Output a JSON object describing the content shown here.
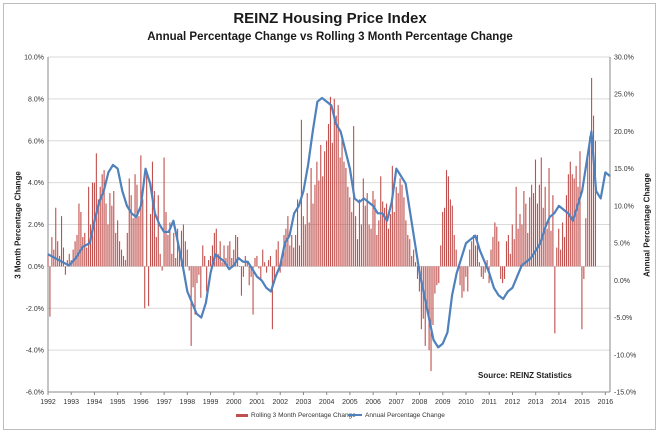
{
  "chart_data": {
    "type": "bar",
    "title": "REINZ Housing Price Index",
    "subtitle": "Annual Percentage Change vs Rolling 3 Month Percentage Change",
    "ylabel_left": "3 Month Percentage Change",
    "ylabel_right": "Annual Percentage Change",
    "source_note": "Source: REINZ Statistics",
    "ylim_left": [
      -6,
      10
    ],
    "ylim_right": [
      -15,
      30
    ],
    "y_ticks_left": [
      "10.0%",
      "8.0%",
      "6.0%",
      "4.0%",
      "2.0%",
      "0.0%",
      "-2.0%",
      "-4.0%",
      "-6.0%"
    ],
    "y_ticks_right": [
      "30.0%",
      "25.0%",
      "20.0%",
      "15.0%",
      "10.0%",
      "5.0%",
      "0.0%",
      "-5.0%",
      "-10.0%",
      "-15.0%"
    ],
    "x_ticks": [
      "1992",
      "1993",
      "1994",
      "1995",
      "1996",
      "1997",
      "1998",
      "1999",
      "2000",
      "2001",
      "2002",
      "2003",
      "2004",
      "2005",
      "2006",
      "2007",
      "2008",
      "2009",
      "2010",
      "2011",
      "2012",
      "2013",
      "2014",
      "2015",
      "2016"
    ],
    "grid": "horizontal",
    "legend_position": "bottom",
    "series": [
      {
        "name": "Rolling 3 Month Percentage Change",
        "kind": "bar",
        "axis": "left",
        "color": "#c0504d",
        "x_start": 1992.0,
        "step_years": 0.0833,
        "values": [
          0.6,
          -2.4,
          1.4,
          0.8,
          2.8,
          1.2,
          0.5,
          2.4,
          0.9,
          -0.4,
          0.3,
          0.6,
          0.3,
          0.8,
          1.2,
          1.5,
          3.0,
          2.6,
          1.4,
          1.6,
          0.9,
          3.8,
          2.0,
          4.0,
          4.0,
          5.4,
          3.2,
          3.8,
          4.4,
          4.6,
          3.0,
          2.0,
          3.5,
          2.9,
          3.6,
          1.6,
          2.2,
          1.2,
          0.8,
          0.5,
          0.3,
          1.6,
          4.2,
          3.4,
          2.3,
          4.4,
          3.9,
          2.4,
          5.3,
          3.2,
          -2.0,
          4.5,
          -1.9,
          2.5,
          5.0,
          3.6,
          1.4,
          3.4,
          0.6,
          -0.2,
          5.2,
          2.6,
          1.5,
          2.1,
          0.6,
          1.6,
          0.4,
          1.8,
          0.9,
          1.7,
          2.0,
          1.2,
          0.8,
          -0.2,
          -3.8,
          -1.0,
          -2.3,
          -0.8,
          -0.4,
          -1.5,
          1.0,
          0.5,
          -1.2,
          0.3,
          0.5,
          1.0,
          1.6,
          1.8,
          0.6,
          1.2,
          0.2,
          1.0,
          0.4,
          1.0,
          1.2,
          0.4,
          0.8,
          1.5,
          1.4,
          0.0,
          -1.4,
          -0.5,
          0.5,
          0.2,
          -0.9,
          -0.5,
          -2.3,
          0.4,
          0.5,
          -0.1,
          -0.6,
          0.8,
          0.2,
          -0.3,
          0.3,
          0.5,
          -3.0,
          -0.8,
          0.8,
          1.2,
          -0.3,
          0.5,
          1.5,
          1.8,
          2.4,
          1.0,
          1.5,
          0.9,
          1.5,
          3.2,
          1.0,
          7.0,
          2.4,
          2.0,
          3.5,
          2.1,
          4.7,
          3.0,
          3.9,
          5.0,
          4.1,
          5.8,
          4.3,
          5.5,
          6.0,
          6.8,
          8.1,
          5.9,
          8.0,
          7.2,
          7.7,
          5.2,
          6.1,
          5.0,
          4.7,
          3.8,
          3.3,
          2.6,
          6.7,
          2.4,
          1.3,
          3.2,
          2.0,
          4.2,
          2.9,
          3.5,
          2.0,
          1.8,
          3.6,
          3.2,
          1.5,
          2.2,
          4.3,
          3.1,
          2.8,
          3.0,
          1.8,
          2.5,
          4.8,
          2.6,
          3.8,
          3.5,
          4.2,
          3.9,
          3.3,
          2.2,
          1.5,
          1.3,
          0.5,
          0.8,
          0.2,
          -0.6,
          -1.2,
          -3.0,
          -2.5,
          -3.8,
          -2.2,
          -4.0,
          -5.0,
          -2.8,
          -1.3,
          -0.9,
          -0.8,
          1.0,
          2.6,
          2.8,
          4.6,
          4.3,
          3.2,
          2.9,
          1.5,
          0.8,
          -0.2,
          -0.9,
          -1.5,
          -1.2,
          -0.5,
          -1.2,
          0.8,
          1.2,
          1.5,
          1.0,
          1.5,
          0.2,
          -0.5,
          -0.6,
          -0.3,
          0.3,
          -0.8,
          0.8,
          1.4,
          2.1,
          1.9,
          1.2,
          -0.6,
          -0.8,
          -0.6,
          1.2,
          1.5,
          0.6,
          2.0,
          1.3,
          3.8,
          1.8,
          2.5,
          2.0,
          3.6,
          3.0,
          1.6,
          3.3,
          3.9,
          3.5,
          5.1,
          3.0,
          3.9,
          5.2,
          2.8,
          3.8,
          1.8,
          4.7,
          1.7,
          3.4,
          -3.2,
          0.9,
          1.8,
          0.8,
          2.1,
          1.4,
          3.4,
          4.4,
          5.0,
          4.4,
          4.2,
          4.8,
          3.8,
          5.5,
          -3.0,
          -0.6,
          2.3,
          5.3,
          6.2,
          9.0,
          7.2,
          6.0
        ]
      },
      {
        "name": "Annual Percentage Change",
        "kind": "line",
        "axis": "right",
        "color": "#4f81bd",
        "x": [
          1992.0,
          1992.3,
          1992.6,
          1992.9,
          1993.2,
          1993.5,
          1993.8,
          1994.0,
          1994.2,
          1994.4,
          1994.6,
          1994.8,
          1995.0,
          1995.2,
          1995.4,
          1995.6,
          1995.8,
          1996.0,
          1996.2,
          1996.4,
          1996.6,
          1996.8,
          1997.0,
          1997.2,
          1997.4,
          1997.6,
          1997.8,
          1998.0,
          1998.2,
          1998.4,
          1998.6,
          1998.8,
          1999.0,
          1999.2,
          1999.4,
          1999.6,
          1999.8,
          2000.0,
          2000.2,
          2000.4,
          2000.6,
          2000.8,
          2001.0,
          2001.2,
          2001.4,
          2001.6,
          2001.8,
          2002.0,
          2002.2,
          2002.4,
          2002.6,
          2002.8,
          2003.0,
          2003.2,
          2003.4,
          2003.6,
          2003.8,
          2004.0,
          2004.2,
          2004.4,
          2004.6,
          2004.8,
          2005.0,
          2005.2,
          2005.4,
          2005.6,
          2005.8,
          2006.0,
          2006.2,
          2006.4,
          2006.6,
          2006.8,
          2007.0,
          2007.2,
          2007.4,
          2007.6,
          2007.8,
          2008.0,
          2008.2,
          2008.4,
          2008.6,
          2008.8,
          2009.0,
          2009.2,
          2009.4,
          2009.6,
          2009.8,
          2010.0,
          2010.2,
          2010.4,
          2010.6,
          2010.8,
          2011.0,
          2011.2,
          2011.4,
          2011.6,
          2011.8,
          2012.0,
          2012.2,
          2012.4,
          2012.6,
          2012.8,
          2013.0,
          2013.2,
          2013.4,
          2013.6,
          2013.8,
          2014.0,
          2014.2,
          2014.4,
          2014.6,
          2014.8,
          2015.0,
          2015.2,
          2015.4,
          2015.6,
          2015.8,
          2016.0,
          2016.2
        ],
        "values": [
          3.5,
          3.0,
          2.5,
          2.0,
          3.0,
          4.5,
          5.0,
          8.0,
          10.5,
          12.0,
          14.5,
          15.5,
          15.0,
          12.0,
          10.0,
          9.0,
          8.5,
          10.0,
          15.0,
          13.0,
          9.0,
          7.5,
          6.5,
          6.5,
          8.0,
          5.0,
          2.0,
          -1.5,
          -3.0,
          -4.5,
          -5.0,
          -3.0,
          1.0,
          3.5,
          3.0,
          2.5,
          1.5,
          2.0,
          3.0,
          2.5,
          2.5,
          1.5,
          0.5,
          0.0,
          -1.0,
          -1.5,
          0.5,
          2.0,
          5.0,
          6.0,
          9.0,
          10.0,
          12.0,
          15.5,
          20.0,
          24.0,
          24.5,
          24.0,
          23.5,
          21.0,
          20.0,
          17.5,
          15.0,
          11.0,
          10.5,
          11.0,
          10.5,
          10.0,
          9.0,
          9.0,
          8.0,
          10.5,
          15.0,
          14.0,
          13.0,
          9.0,
          5.0,
          1.0,
          -2.0,
          -5.0,
          -8.0,
          -9.0,
          -8.5,
          -7.0,
          -2.0,
          1.0,
          3.0,
          5.0,
          5.5,
          6.0,
          4.0,
          2.5,
          1.0,
          -1.0,
          -2.0,
          -2.5,
          -1.5,
          -1.0,
          0.5,
          2.0,
          2.5,
          3.0,
          4.0,
          5.0,
          7.0,
          8.5,
          9.0,
          10.0,
          9.5,
          9.0,
          8.0,
          10.0,
          12.0,
          16.0,
          20.0,
          12.0,
          11.0,
          14.5,
          14.0
        ]
      }
    ]
  }
}
